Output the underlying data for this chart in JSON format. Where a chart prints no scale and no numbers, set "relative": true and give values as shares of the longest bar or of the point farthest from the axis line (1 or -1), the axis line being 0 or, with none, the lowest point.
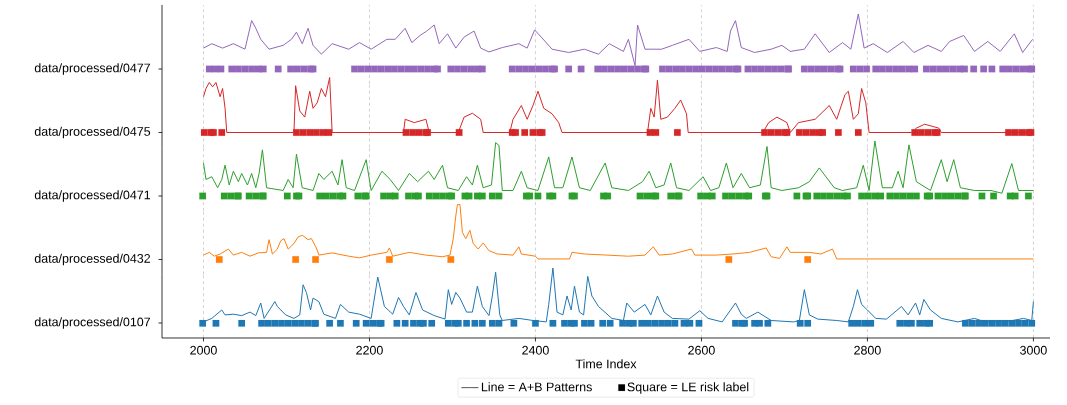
{
  "chart_data": [
    {
      "type": "line",
      "relative": true,
      "ylabel": "data/processed/0477",
      "xticks": [
        2000,
        2200,
        2400,
        2600,
        2800,
        3000
      ],
      "grid": "x",
      "tick_labels": false,
      "series": [
        {
          "color": "#9467bd",
          "x": [
            2000,
            2010,
            2023,
            2036,
            2050,
            2058,
            2063,
            2069,
            2079,
            2096,
            2106,
            2112,
            2119,
            2126,
            2132,
            2142,
            2155,
            2175,
            2188,
            2202,
            2221,
            2231,
            2243,
            2251,
            2261,
            2269,
            2278,
            2284,
            2294,
            2304,
            2314,
            2326,
            2334,
            2344,
            2360,
            2380,
            2390,
            2399,
            2407,
            2420,
            2440,
            2459,
            2476,
            2489,
            2506,
            2512,
            2520,
            2523,
            2532,
            2552,
            2565,
            2585,
            2598,
            2618,
            2631,
            2635,
            2641,
            2648,
            2664,
            2684,
            2697,
            2707,
            2724,
            2737,
            2754,
            2770,
            2780,
            2789,
            2796,
            2807,
            2824,
            2843,
            2856,
            2873,
            2889,
            2899,
            2916,
            2929,
            2945,
            2960,
            2977,
            2987,
            2999
          ],
          "values": [
            0.38,
            0.46,
            0.38,
            0.46,
            0.36,
            0.88,
            0.74,
            0.54,
            0.36,
            0.43,
            0.54,
            0.67,
            0.46,
            0.74,
            0.43,
            0.27,
            0.46,
            0.36,
            0.48,
            0.36,
            0.54,
            0.54,
            0.74,
            0.48,
            0.61,
            0.69,
            0.8,
            0.46,
            0.64,
            0.38,
            0.58,
            0.69,
            0.38,
            0.31,
            0.39,
            0.46,
            0.38,
            0.71,
            0.58,
            0.36,
            0.3,
            0.36,
            0.27,
            0.46,
            0.32,
            0.54,
            0.06,
            0.8,
            0.36,
            0.36,
            0.43,
            0.54,
            0.32,
            0.39,
            0.32,
            0.69,
            0.88,
            0.39,
            0.3,
            0.36,
            0.43,
            0.32,
            0.36,
            0.64,
            0.3,
            0.48,
            0.36,
            1,
            0.38,
            0.46,
            0.3,
            0.5,
            0.3,
            0.43,
            0.32,
            0.5,
            0.61,
            0.32,
            0.5,
            0.32,
            0.64,
            0.3,
            0.54
          ]
        },
        {
          "type": "scatter",
          "marker": "square",
          "color": "#9467bd",
          "x": [
            2007,
            2014,
            2021,
            2034,
            2042,
            2050,
            2058,
            2066,
            2072,
            2090,
            2105,
            2113,
            2121,
            2129,
            2132,
            2182,
            2190,
            2198,
            2206,
            2214,
            2222,
            2230,
            2238,
            2246,
            2254,
            2262,
            2270,
            2278,
            2282,
            2298,
            2306,
            2314,
            2322,
            2330,
            2336,
            2372,
            2380,
            2388,
            2396,
            2404,
            2412,
            2420,
            2423,
            2440,
            2455,
            2475,
            2483,
            2491,
            2499,
            2507,
            2515,
            2523,
            2531,
            2533,
            2553,
            2561,
            2569,
            2577,
            2585,
            2593,
            2601,
            2609,
            2617,
            2625,
            2633,
            2641,
            2644,
            2656,
            2664,
            2672,
            2680,
            2688,
            2696,
            2704,
            2705,
            2724,
            2732,
            2740,
            2748,
            2756,
            2764,
            2767,
            2783,
            2791,
            2799,
            2810,
            2818,
            2826,
            2834,
            2842,
            2850,
            2857,
            2871,
            2879,
            2887,
            2895,
            2903,
            2911,
            2917,
            2928,
            2940,
            2950,
            2963,
            2971,
            2979,
            2987,
            2995,
            2998
          ],
          "values": [
            0,
            0,
            0,
            0,
            0,
            0,
            0,
            0,
            0,
            0,
            0,
            0,
            0,
            0,
            0,
            0,
            0,
            0,
            0,
            0,
            0,
            0,
            0,
            0,
            0,
            0,
            0,
            0,
            0,
            0,
            0,
            0,
            0,
            0,
            0,
            0,
            0,
            0,
            0,
            0,
            0,
            0,
            0,
            0,
            0,
            0,
            0,
            0,
            0,
            0,
            0,
            0,
            0,
            0,
            0,
            0,
            0,
            0,
            0,
            0,
            0,
            0,
            0,
            0,
            0,
            0,
            0,
            0,
            0,
            0,
            0,
            0,
            0,
            0,
            0,
            0,
            0,
            0,
            0,
            0,
            0,
            0,
            0,
            0,
            0,
            0,
            0,
            0,
            0,
            0,
            0,
            0,
            0,
            0,
            0,
            0,
            0,
            0,
            0,
            0,
            0,
            0,
            0,
            0,
            0,
            0,
            0,
            0
          ]
        }
      ]
    },
    {
      "type": "line",
      "relative": true,
      "ylabel": "data/processed/0475",
      "xticks": [
        2000,
        2200,
        2400,
        2600,
        2800,
        3000
      ],
      "grid": "x",
      "tick_labels": false,
      "series": [
        {
          "color": "#d62728",
          "x": [
            2000,
            2003,
            2007,
            2011,
            2015,
            2020,
            2023,
            2026,
            2028,
            2109,
            2111,
            2116,
            2122,
            2128,
            2132,
            2137,
            2142,
            2147,
            2152,
            2155,
            2241,
            2243,
            2254,
            2268,
            2272,
            2307,
            2314,
            2324,
            2334,
            2337,
            2369,
            2373,
            2383,
            2390,
            2397,
            2403,
            2410,
            2420,
            2428,
            2432,
            2535,
            2539,
            2543,
            2547,
            2551,
            2559,
            2568,
            2575,
            2582,
            2584,
            2674,
            2681,
            2691,
            2703,
            2707,
            2717,
            2737,
            2754,
            2763,
            2773,
            2777,
            2783,
            2789,
            2793,
            2798,
            2802,
            2853,
            2859,
            2869,
            2886,
            2889,
            3000
          ],
          "values": [
            0.65,
            0.8,
            0.91,
            0.83,
            0.91,
            0.65,
            0.8,
            0.44,
            0,
            0,
            0.85,
            0.39,
            0.28,
            0.75,
            0.44,
            0.54,
            0.8,
            0.65,
            1,
            0,
            0,
            0.24,
            0.18,
            0.24,
            0,
            0,
            0.28,
            0.35,
            0.24,
            0,
            0,
            0.24,
            0.49,
            0.24,
            0.49,
            0.75,
            0.44,
            0.34,
            0.18,
            0,
            0,
            0.44,
            0.28,
            0.95,
            0.24,
            0.28,
            0.44,
            0.59,
            0.34,
            0,
            0,
            0.18,
            0.28,
            0.18,
            0,
            0.18,
            0.24,
            0.49,
            0.24,
            0.69,
            0.75,
            0.24,
            0.34,
            0.8,
            0.54,
            0,
            0,
            0.08,
            0.15,
            0.08,
            0,
            0
          ]
        },
        {
          "type": "scatter",
          "marker": "square",
          "color": "#d62728",
          "x": [
            2001,
            2009,
            2012,
            2022,
            2112,
            2120,
            2128,
            2136,
            2144,
            2151,
            2244,
            2252,
            2260,
            2268,
            2270,
            2308,
            2372,
            2376,
            2387,
            2397,
            2405,
            2408,
            2538,
            2545,
            2571,
            2676,
            2684,
            2692,
            2700,
            2703,
            2718,
            2726,
            2734,
            2742,
            2746,
            2765,
            2789,
            2857,
            2865,
            2873,
            2881,
            2884,
            2970,
            2978,
            2986,
            2994,
            2997
          ],
          "values": [
            0,
            0,
            0,
            0,
            0,
            0,
            0,
            0,
            0,
            0,
            0,
            0,
            0,
            0,
            0,
            0,
            0,
            0,
            0,
            0,
            0,
            0,
            0,
            0,
            0,
            0,
            0,
            0,
            0,
            0,
            0,
            0,
            0,
            0,
            0,
            0,
            0,
            0,
            0,
            0,
            0,
            0,
            0,
            0,
            0,
            0,
            0
          ]
        }
      ]
    },
    {
      "type": "line",
      "relative": true,
      "ylabel": "data/processed/0471",
      "xticks": [
        2000,
        2200,
        2400,
        2600,
        2800,
        3000
      ],
      "grid": "x",
      "tick_labels": false,
      "series": [
        {
          "color": "#2ca02c",
          "x": [
            2000,
            2003,
            2010,
            2017,
            2022,
            2026,
            2031,
            2036,
            2042,
            2046,
            2053,
            2058,
            2063,
            2067,
            2071,
            2076,
            2096,
            2102,
            2108,
            2112,
            2119,
            2132,
            2139,
            2145,
            2155,
            2162,
            2167,
            2172,
            2182,
            2196,
            2202,
            2215,
            2225,
            2235,
            2248,
            2258,
            2271,
            2278,
            2288,
            2294,
            2307,
            2317,
            2324,
            2330,
            2337,
            2347,
            2352,
            2356,
            2360,
            2373,
            2383,
            2390,
            2403,
            2416,
            2423,
            2433,
            2444,
            2453,
            2466,
            2484,
            2492,
            2512,
            2529,
            2537,
            2545,
            2555,
            2563,
            2570,
            2585,
            2602,
            2611,
            2621,
            2630,
            2638,
            2648,
            2658,
            2671,
            2679,
            2684,
            2697,
            2717,
            2730,
            2742,
            2750,
            2760,
            2770,
            2787,
            2795,
            2802,
            2809,
            2818,
            2830,
            2837,
            2843,
            2850,
            2859,
            2876,
            2889,
            2896,
            2904,
            2912,
            2929,
            2949,
            2962,
            2974,
            2982,
            3000
          ],
          "values": [
            0.6,
            0.3,
            0.35,
            0.15,
            0.3,
            0.56,
            0.2,
            0.45,
            0.26,
            0.41,
            0.2,
            0.41,
            0.15,
            0.41,
            0.84,
            0.15,
            0.1,
            0.3,
            0.15,
            0.76,
            0.15,
            0.1,
            0.41,
            0.3,
            0.45,
            0.2,
            0.66,
            0.15,
            0.1,
            0.66,
            0.1,
            0.45,
            0.3,
            0.1,
            0.41,
            0.26,
            0.45,
            0.3,
            0.56,
            0.15,
            0.1,
            0.35,
            0.2,
            0.56,
            0.15,
            0.2,
            0.97,
            0.92,
            0.1,
            0.1,
            0.45,
            0.15,
            0.1,
            0.71,
            0.15,
            0.15,
            0.71,
            0.15,
            0.1,
            0.6,
            0.15,
            0.1,
            0.26,
            0.45,
            0.15,
            0.2,
            0.6,
            0.15,
            0.1,
            0.35,
            0.1,
            0.15,
            0.6,
            0.15,
            0.41,
            0.15,
            0.2,
            0.9,
            0.15,
            0.1,
            0.15,
            0.26,
            0.51,
            0.35,
            0.15,
            0.1,
            0.15,
            0.56,
            0.1,
            1,
            0.15,
            0.15,
            0.45,
            0.15,
            0.93,
            0.26,
            0.1,
            0.66,
            0.26,
            0.66,
            0.15,
            0.1,
            0.1,
            0.05,
            0.59,
            0.1,
            0.1
          ]
        },
        {
          "type": "scatter",
          "marker": "square",
          "color": "#2ca02c",
          "x": [
            1999,
            2025,
            2033,
            2041,
            2042,
            2055,
            2063,
            2071,
            2072,
            2101,
            2112,
            2115,
            2140,
            2148,
            2156,
            2164,
            2168,
            2186,
            2194,
            2196,
            2217,
            2225,
            2231,
            2247,
            2255,
            2259,
            2272,
            2280,
            2288,
            2296,
            2299,
            2315,
            2320,
            2330,
            2336,
            2348,
            2356,
            2389,
            2393,
            2403,
            2417,
            2421,
            2444,
            2447,
            2482,
            2487,
            2526,
            2534,
            2542,
            2545,
            2563,
            2571,
            2573,
            2599,
            2607,
            2613,
            2629,
            2637,
            2645,
            2653,
            2657,
            2677,
            2679,
            2715,
            2726,
            2728,
            2739,
            2747,
            2755,
            2763,
            2771,
            2776,
            2793,
            2801,
            2809,
            2816,
            2827,
            2835,
            2843,
            2851,
            2859,
            2872,
            2875,
            2885,
            2893,
            2901,
            2909,
            2917,
            2918,
            2938,
            2952,
            2972,
            2978,
            2994
          ],
          "values": [
            0,
            0,
            0,
            0,
            0,
            0,
            0,
            0,
            0,
            0,
            0,
            0,
            0,
            0,
            0,
            0,
            0,
            0,
            0,
            0,
            0,
            0,
            0,
            0,
            0,
            0,
            0,
            0,
            0,
            0,
            0,
            0,
            0,
            0,
            0,
            0,
            0,
            0,
            0,
            0,
            0,
            0,
            0,
            0,
            0,
            0,
            0,
            0,
            0,
            0,
            0,
            0,
            0,
            0,
            0,
            0,
            0,
            0,
            0,
            0,
            0,
            0,
            0,
            0,
            0,
            0,
            0,
            0,
            0,
            0,
            0,
            0,
            0,
            0,
            0,
            0,
            0,
            0,
            0,
            0,
            0,
            0,
            0,
            0,
            0,
            0,
            0,
            0,
            0,
            0,
            0,
            0,
            0,
            0
          ]
        }
      ]
    },
    {
      "type": "line",
      "relative": true,
      "ylabel": "data/processed/0432",
      "xticks": [
        2000,
        2200,
        2400,
        2600,
        2800,
        3000
      ],
      "grid": "x",
      "tick_labels": false,
      "series": [
        {
          "color": "#ff7f0e",
          "x": [
            2000,
            2007,
            2013,
            2020,
            2030,
            2036,
            2046,
            2056,
            2066,
            2076,
            2079,
            2083,
            2089,
            2093,
            2097,
            2102,
            2109,
            2114,
            2119,
            2126,
            2130,
            2136,
            2139,
            2155,
            2175,
            2188,
            2202,
            2221,
            2224,
            2228,
            2248,
            2268,
            2288,
            2297,
            2301,
            2304,
            2306,
            2309,
            2312,
            2316,
            2321,
            2325,
            2331,
            2337,
            2344,
            2354,
            2373,
            2380,
            2383,
            2400,
            2403,
            2441,
            2444,
            2459,
            2486,
            2512,
            2532,
            2542,
            2549,
            2565,
            2588,
            2592,
            2618,
            2638,
            2658,
            2678,
            2684,
            2694,
            2703,
            2707,
            2730,
            2744,
            2758,
            2763,
            3000
          ],
          "values": [
            0.08,
            0.13,
            0.06,
            0.1,
            0.19,
            0.08,
            0.13,
            0.06,
            0.12,
            0.13,
            0.36,
            0.1,
            0.19,
            0.34,
            0.38,
            0.19,
            0.29,
            0.41,
            0.44,
            0.36,
            0.38,
            0.21,
            0.08,
            0.12,
            0.06,
            0.03,
            0.08,
            0.13,
            0.21,
            0.06,
            0.13,
            0.08,
            0.05,
            0.08,
            0.38,
            0.79,
            1,
            1,
            0.49,
            0.38,
            0.53,
            0.29,
            0.19,
            0.3,
            0.16,
            0.1,
            0.08,
            0.23,
            0.1,
            0.06,
            0.01,
            0.01,
            0.13,
            0.1,
            0.08,
            0.06,
            0.08,
            0.23,
            0.08,
            0.1,
            0.19,
            0.08,
            0.08,
            0.1,
            0.13,
            0.21,
            0.05,
            0.02,
            0.23,
            0.13,
            0.13,
            0.1,
            0.19,
            0.01,
            0.01
          ]
        },
        {
          "type": "scatter",
          "marker": "square",
          "color": "#ff7f0e",
          "x": [
            2019,
            2111,
            2135,
            2224,
            2298,
            2633,
            2728
          ],
          "values": [
            0,
            0,
            0,
            0,
            0,
            0,
            0
          ]
        }
      ]
    },
    {
      "type": "line",
      "relative": true,
      "ylabel": "data/processed/0107",
      "xlabel": "Time Index",
      "xlim": [
        1950,
        3020
      ],
      "xticks": [
        2000,
        2200,
        2400,
        2600,
        2800,
        3000
      ],
      "grid": "x",
      "legend": "bottom",
      "series": [
        {
          "color": "#1f77b4",
          "x": [
            2000,
            2010,
            2022,
            2026,
            2036,
            2046,
            2056,
            2063,
            2069,
            2073,
            2086,
            2089,
            2099,
            2109,
            2116,
            2120,
            2124,
            2129,
            2132,
            2139,
            2145,
            2159,
            2165,
            2175,
            2188,
            2202,
            2210,
            2218,
            2228,
            2235,
            2241,
            2248,
            2256,
            2264,
            2278,
            2291,
            2295,
            2299,
            2304,
            2309,
            2317,
            2324,
            2330,
            2336,
            2344,
            2348,
            2352,
            2357,
            2360,
            2380,
            2397,
            2413,
            2416,
            2421,
            2426,
            2433,
            2438,
            2443,
            2447,
            2453,
            2458,
            2463,
            2468,
            2476,
            2492,
            2506,
            2510,
            2519,
            2532,
            2539,
            2547,
            2555,
            2565,
            2585,
            2598,
            2608,
            2625,
            2641,
            2648,
            2654,
            2668,
            2684,
            2711,
            2718,
            2724,
            2730,
            2740,
            2763,
            2777,
            2783,
            2788,
            2793,
            2800,
            2810,
            2823,
            2841,
            2849,
            2858,
            2863,
            2868,
            2876,
            2889,
            2909,
            2929,
            2942,
            2975,
            2988,
            2998,
            3000
          ],
          "values": [
            0.23,
            0.28,
            0.4,
            0.33,
            0.34,
            0.32,
            0.37,
            0.32,
            0.5,
            0.28,
            0.52,
            0.45,
            0.33,
            0.28,
            0.33,
            0.76,
            0.65,
            0.4,
            0.57,
            0.52,
            0.34,
            0.28,
            0.48,
            0.37,
            0.34,
            0.28,
            0.87,
            0.45,
            0.34,
            0.58,
            0.45,
            0.33,
            0.65,
            0.4,
            0.32,
            0.27,
            0.69,
            0.48,
            0.65,
            0.57,
            0.37,
            0.37,
            0.74,
            0.45,
            0.32,
            0.6,
            0.94,
            0.33,
            0.25,
            0.28,
            0.25,
            0.23,
            0.48,
            1,
            0.37,
            0.33,
            0.6,
            0.4,
            0.74,
            0.37,
            0.33,
            0.88,
            0.6,
            0.45,
            0.28,
            0.25,
            0.5,
            0.37,
            0.48,
            0.33,
            0.6,
            0.37,
            0.28,
            0.27,
            0.39,
            0.28,
            0.23,
            0.5,
            0.34,
            0.28,
            0.37,
            0.25,
            0.23,
            0.25,
            0.69,
            0.33,
            0.27,
            0.25,
            0.23,
            0.45,
            0.69,
            0.48,
            0.4,
            0.28,
            0.27,
            0.45,
            0.33,
            0.5,
            0.33,
            0.55,
            0.4,
            0.28,
            0.23,
            0.28,
            0.23,
            0.25,
            0.28,
            0.25,
            0.52
          ]
        },
        {
          "type": "scatter",
          "marker": "square",
          "color": "#1f77b4",
          "x": [
            1999,
            2015,
            2046,
            2070,
            2078,
            2086,
            2094,
            2102,
            2110,
            2118,
            2126,
            2134,
            2135,
            2152,
            2165,
            2184,
            2196,
            2204,
            2212,
            2214,
            2233,
            2243,
            2253,
            2261,
            2265,
            2275,
            2295,
            2303,
            2307,
            2317,
            2327,
            2336,
            2348,
            2356,
            2374,
            2400,
            2421,
            2435,
            2443,
            2447,
            2459,
            2467,
            2481,
            2490,
            2505,
            2513,
            2518,
            2528,
            2536,
            2544,
            2552,
            2560,
            2568,
            2579,
            2586,
            2597,
            2641,
            2649,
            2652,
            2664,
            2670,
            2680,
            2719,
            2728,
            2781,
            2789,
            2797,
            2804,
            2839,
            2847,
            2853,
            2863,
            2871,
            2875,
            2918,
            2926,
            2934,
            2942,
            2950,
            2958,
            2966,
            2974,
            2982,
            2990,
            2998
          ],
          "values": [
            0.21,
            0.21,
            0.21,
            0.21,
            0.21,
            0.21,
            0.21,
            0.21,
            0.21,
            0.21,
            0.21,
            0.21,
            0.21,
            0.21,
            0.21,
            0.21,
            0.21,
            0.21,
            0.21,
            0.21,
            0.21,
            0.21,
            0.21,
            0.21,
            0.21,
            0.21,
            0.21,
            0.21,
            0.21,
            0.21,
            0.21,
            0.21,
            0.21,
            0.21,
            0.21,
            0.21,
            0.21,
            0.21,
            0.21,
            0.21,
            0.21,
            0.21,
            0.21,
            0.21,
            0.21,
            0.21,
            0.21,
            0.21,
            0.21,
            0.21,
            0.21,
            0.21,
            0.21,
            0.21,
            0.21,
            0.21,
            0.21,
            0.21,
            0.21,
            0.21,
            0.21,
            0.21,
            0.21,
            0.21,
            0.21,
            0.21,
            0.21,
            0.21,
            0.21,
            0.21,
            0.21,
            0.21,
            0.21,
            0.21,
            0.21,
            0.21,
            0.21,
            0.21,
            0.21,
            0.21,
            0.21,
            0.21,
            0.21,
            0.21,
            0.21
          ]
        },
        {
          "name": "Line = A+B Patterns",
          "color": "#555555"
        },
        {
          "type": "scatter",
          "marker": "square",
          "name": "Square = LE risk label",
          "color": "#000000"
        }
      ]
    }
  ]
}
